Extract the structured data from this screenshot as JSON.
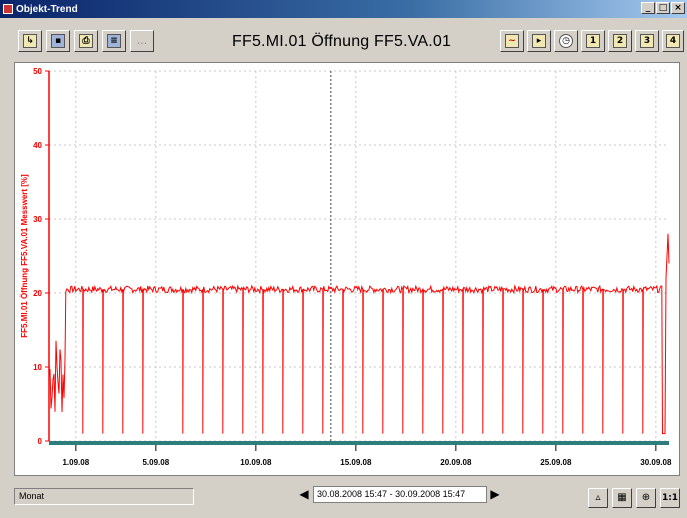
{
  "window": {
    "title": "Objekt-Trend",
    "minimize": "_",
    "maximize": "□",
    "close": "×"
  },
  "toolbar": {
    "trend_title": "FF5.MI.01 Öffnung FF5.VA.01",
    "left_buttons": [
      "export-icon",
      "save-icon",
      "print-icon",
      "properties-icon",
      "more-icon"
    ],
    "more_label": "...",
    "right_buttons": [
      "trend-icon",
      "export-icon",
      "clock-icon",
      "period-1-icon",
      "period-2-icon",
      "period-3-icon",
      "period-4-icon"
    ],
    "period_labels": [
      "1",
      "2",
      "3",
      "4"
    ]
  },
  "chart_data": {
    "type": "line",
    "ylabel": "FF5.MI.01 Öffnung FF5.VA.01 Messwert [%]",
    "ylim": [
      0,
      50
    ],
    "yticks": [
      "0",
      "10",
      "20",
      "30",
      "40",
      "50"
    ],
    "x_range": [
      "2008-08-30 15:47",
      "2008-09-30 15:47"
    ],
    "xticks": [
      "1.09.08",
      "5.09.08",
      "10.09.08",
      "15.09.08",
      "20.09.08",
      "25.09.08",
      "30.09.08"
    ],
    "series": [
      {
        "color": "#ff0000",
        "baseline": 20.5,
        "segments": [
          {
            "x": [
              "2008-08-30 15:47",
              "2008-08-31 12:00"
            ],
            "y": [
              3,
              15
            ],
            "note": "noisy"
          },
          {
            "x": [
              "2008-08-31 12:00",
              "2008-09-30 08:00"
            ],
            "y": [
              20.5,
              20.5
            ]
          },
          {
            "x": [
              "2008-09-30 08:00",
              "2008-09-30 15:47"
            ],
            "y": [
              1,
              28
            ]
          }
        ],
        "dips_to": 1,
        "dip_dates": [
          "2008-09-01",
          "2008-09-02",
          "2008-09-03",
          "2008-09-04",
          "2008-09-06",
          "2008-09-07",
          "2008-09-08",
          "2008-09-09",
          "2008-09-10",
          "2008-09-11",
          "2008-09-12",
          "2008-09-13",
          "2008-09-14",
          "2008-09-15",
          "2008-09-16",
          "2008-09-17",
          "2008-09-18",
          "2008-09-19",
          "2008-09-20",
          "2008-09-21",
          "2008-09-22",
          "2008-09-23",
          "2008-09-24",
          "2008-09-25",
          "2008-09-26",
          "2008-09-27",
          "2008-09-28",
          "2008-09-29"
        ]
      }
    ],
    "cursor_x": "2008-09-13 18:00",
    "grid": true
  },
  "statusbar": {
    "resolution": "Monat",
    "range": "30.08.2008 15:47 - 30.09.2008 15:47",
    "prev_label": "◀",
    "next_label": "▶",
    "buttons": [
      "mountain-icon",
      "grid-icon",
      "zoom-icon",
      "reset-zoom-icon"
    ],
    "button_labels": [
      "▵",
      "▦",
      "⊕",
      "1:1"
    ]
  }
}
